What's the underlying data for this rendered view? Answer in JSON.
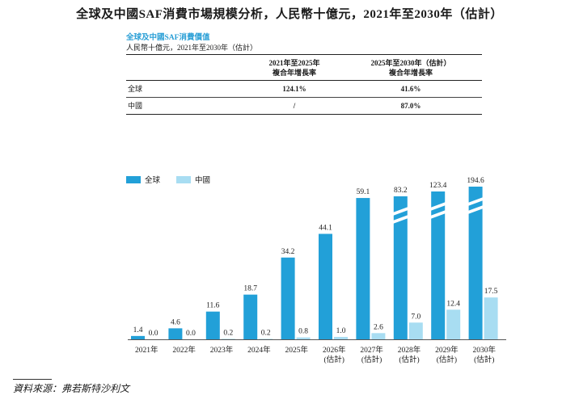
{
  "title": "全球及中國SAF消費市場規模分析，人民幣十億元，2021年至2030年（估計）",
  "subtitle": "全球及中國SAF消費價值",
  "unit": "人民幣十億元，2021年至2030年（估計）",
  "table": {
    "headers": [
      "2021年至2025年\n複合年增長率",
      "2025年至2030年（估計）\n複合年增長率"
    ],
    "rows": [
      {
        "label": "全球",
        "values": [
          "124.1%",
          "41.6%"
        ]
      },
      {
        "label": "中國",
        "values": [
          "/",
          "87.0%"
        ]
      }
    ]
  },
  "legend": [
    {
      "name": "全球",
      "color": "#22a0d8"
    },
    {
      "name": "中國",
      "color": "#a8ddf2"
    }
  ],
  "chart_data": {
    "type": "bar",
    "categories": [
      "2021年",
      "2022年",
      "2023年",
      "2024年",
      "2025年",
      "2026年\n(估計)",
      "2027年\n(估計)",
      "2028年\n(估計)",
      "2029年\n(估計)",
      "2030年\n(估計)"
    ],
    "series": [
      {
        "name": "全球",
        "values": [
          1.4,
          4.6,
          11.6,
          18.7,
          34.2,
          44.1,
          59.1,
          83.2,
          123.4,
          194.6
        ],
        "color": "#22a0d8"
      },
      {
        "name": "中國",
        "values": [
          0.0,
          0.0,
          0.2,
          0.2,
          0.8,
          1.0,
          2.6,
          7.0,
          12.4,
          17.5
        ],
        "color": "#a8ddf2"
      }
    ],
    "value_labels": {
      "全球": [
        "1.4",
        "4.6",
        "11.6",
        "18.7",
        "34.2",
        "44.1",
        "59.1",
        "83.2",
        "123.4",
        "194.6"
      ],
      "中國": [
        "0.0",
        "0.0",
        "0.2",
        "0.2",
        "0.8",
        "1.0",
        "2.6",
        "7.0",
        "12.4",
        "17.5"
      ]
    },
    "axis_break_categories": [
      "2028年\n(估計)",
      "2029年\n(估計)",
      "2030年\n(估計)"
    ],
    "title": "",
    "xlabel": "",
    "ylabel": "",
    "grid": false
  },
  "source": "資料來源：弗若斯特沙利文"
}
